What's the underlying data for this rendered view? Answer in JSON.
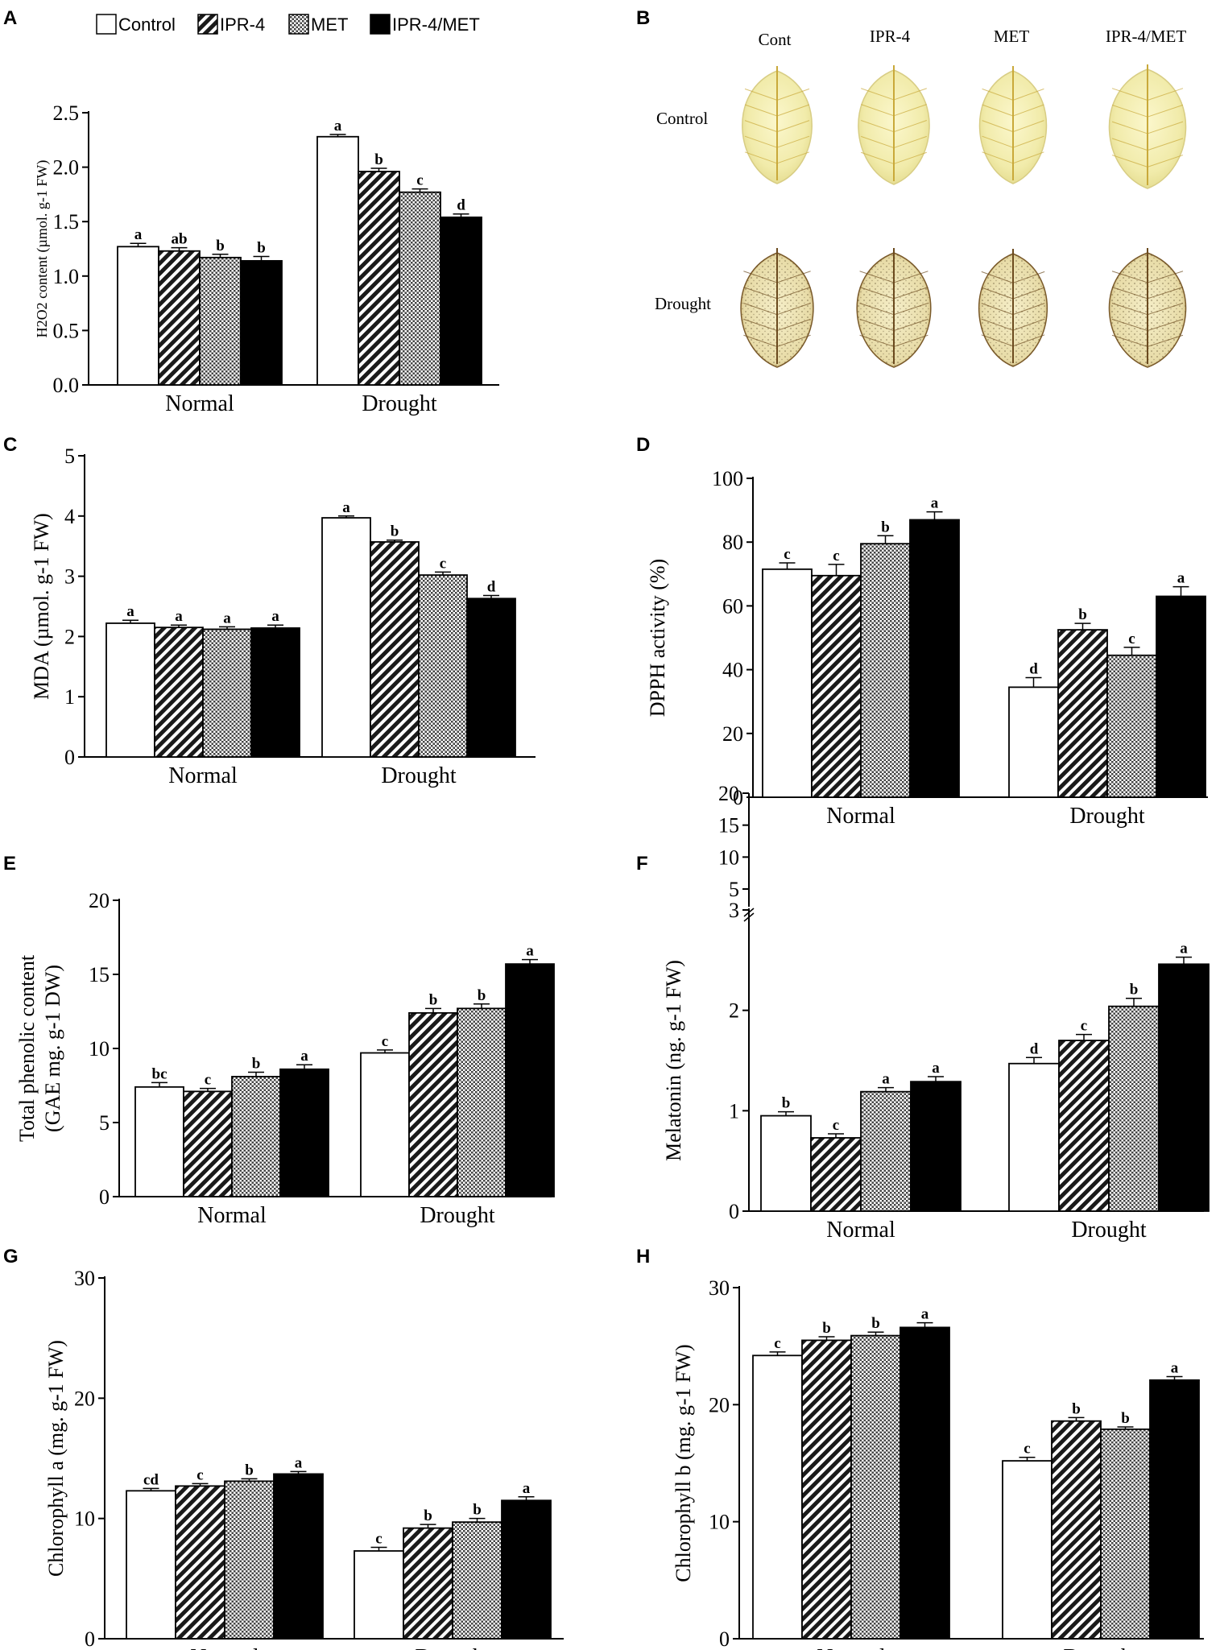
{
  "legend": {
    "items": [
      {
        "label": "Control",
        "pattern": "white"
      },
      {
        "label": "IPR-4",
        "pattern": "hatch"
      },
      {
        "label": "MET",
        "pattern": "dots"
      },
      {
        "label": "IPR-4/MET",
        "pattern": "black"
      }
    ]
  },
  "panels": {
    "A": "A",
    "B": "B",
    "C": "C",
    "D": "D",
    "E": "E",
    "F": "F",
    "G": "G",
    "H": "H"
  },
  "leaf_panel": {
    "columns": [
      "Cont",
      "IPR-4",
      "MET",
      "IPR-4/MET"
    ],
    "rows": [
      "Control",
      "Drought"
    ]
  },
  "chart_data": [
    {
      "id": "A",
      "type": "bar",
      "categories": [
        "Normal",
        "Drought"
      ],
      "ylabel": "H2O2 content (µmol. g-1 FW)",
      "ylim": [
        0,
        2.5
      ],
      "yticks": [
        "0.0",
        "0.5",
        "1.0",
        "1.5",
        "2.0",
        "2.5"
      ],
      "series": [
        {
          "name": "Control",
          "values": [
            1.27,
            2.28
          ],
          "errors": [
            0.03,
            0.02
          ],
          "letters": [
            "a",
            "a"
          ]
        },
        {
          "name": "IPR-4",
          "values": [
            1.23,
            1.96
          ],
          "errors": [
            0.03,
            0.03
          ],
          "letters": [
            "ab",
            "b"
          ]
        },
        {
          "name": "MET",
          "values": [
            1.17,
            1.77
          ],
          "errors": [
            0.03,
            0.03
          ],
          "letters": [
            "b",
            "c"
          ]
        },
        {
          "name": "IPR-4/MET",
          "values": [
            1.14,
            1.54
          ],
          "errors": [
            0.04,
            0.03
          ],
          "letters": [
            "b",
            "d"
          ]
        }
      ]
    },
    {
      "id": "C",
      "type": "bar",
      "categories": [
        "Normal",
        "Drought"
      ],
      "ylabel": "MDA (µmol. g-1 FW)",
      "ylim": [
        0,
        5
      ],
      "yticks": [
        "0",
        "1",
        "2",
        "3",
        "4",
        "5"
      ],
      "series": [
        {
          "name": "Control",
          "values": [
            2.22,
            3.97
          ],
          "errors": [
            0.05,
            0.03
          ],
          "letters": [
            "a",
            "a"
          ]
        },
        {
          "name": "IPR-4",
          "values": [
            2.15,
            3.57
          ],
          "errors": [
            0.04,
            0.03
          ],
          "letters": [
            "a",
            "b"
          ]
        },
        {
          "name": "MET",
          "values": [
            2.12,
            3.02
          ],
          "errors": [
            0.04,
            0.05
          ],
          "letters": [
            "a",
            "c"
          ]
        },
        {
          "name": "IPR-4/MET",
          "values": [
            2.14,
            2.63
          ],
          "errors": [
            0.05,
            0.05
          ],
          "letters": [
            "a",
            "d"
          ]
        }
      ]
    },
    {
      "id": "D",
      "type": "bar",
      "categories": [
        "Normal",
        "Drought"
      ],
      "ylabel": "DPPH activity (%)",
      "ylim": [
        0,
        100
      ],
      "yticks": [
        "0",
        "20",
        "40",
        "60",
        "80",
        "100"
      ],
      "series": [
        {
          "name": "Control",
          "values": [
            71.5,
            34.5
          ],
          "errors": [
            2.0,
            3.0
          ],
          "letters": [
            "c",
            "d"
          ]
        },
        {
          "name": "IPR-4",
          "values": [
            69.5,
            52.5
          ],
          "errors": [
            3.5,
            2.0
          ],
          "letters": [
            "c",
            "b"
          ]
        },
        {
          "name": "MET",
          "values": [
            79.5,
            44.5
          ],
          "errors": [
            2.5,
            2.5
          ],
          "letters": [
            "b",
            "c"
          ]
        },
        {
          "name": "IPR-4/MET",
          "values": [
            87.0,
            63.0
          ],
          "errors": [
            2.5,
            3.0
          ],
          "letters": [
            "a",
            "a"
          ]
        }
      ]
    },
    {
      "id": "E",
      "type": "bar",
      "categories": [
        "Normal",
        "Drought"
      ],
      "ylabel": "Total phenolic content (GAE mg. g-1 DW)",
      "ylabel_lines": [
        "Total phenolic content",
        "(GAE mg. g-1 DW)"
      ],
      "ylim": [
        0,
        20
      ],
      "yticks": [
        "0",
        "5",
        "10",
        "15",
        "20"
      ],
      "series": [
        {
          "name": "Control",
          "values": [
            7.4,
            9.7
          ],
          "errors": [
            0.3,
            0.2
          ],
          "letters": [
            "bc",
            "c"
          ]
        },
        {
          "name": "IPR-4",
          "values": [
            7.1,
            12.4
          ],
          "errors": [
            0.2,
            0.3
          ],
          "letters": [
            "c",
            "b"
          ]
        },
        {
          "name": "MET",
          "values": [
            8.1,
            12.7
          ],
          "errors": [
            0.3,
            0.3
          ],
          "letters": [
            "b",
            "b"
          ]
        },
        {
          "name": "IPR-4/MET",
          "values": [
            8.6,
            15.7
          ],
          "errors": [
            0.3,
            0.3
          ],
          "letters": [
            "a",
            "a"
          ]
        }
      ]
    },
    {
      "id": "F",
      "type": "bar",
      "categories": [
        "Normal",
        "Drought"
      ],
      "ylabel": "Melatonin (ng. g-1 FW)",
      "ylim": [
        0,
        3
      ],
      "yticks": [
        "0",
        "1",
        "2",
        "3"
      ],
      "broken_axis_upper_ticks": [
        "5",
        "10",
        "15",
        "20"
      ],
      "series": [
        {
          "name": "Control",
          "values": [
            0.95,
            1.47
          ],
          "errors": [
            0.04,
            0.06
          ],
          "letters": [
            "b",
            "d"
          ]
        },
        {
          "name": "IPR-4",
          "values": [
            0.73,
            1.7
          ],
          "errors": [
            0.04,
            0.06
          ],
          "letters": [
            "c",
            "c"
          ]
        },
        {
          "name": "MET",
          "values": [
            1.19,
            2.04
          ],
          "errors": [
            0.04,
            0.08
          ],
          "letters": [
            "a",
            "b"
          ]
        },
        {
          "name": "IPR-4/MET",
          "values": [
            1.29,
            2.46
          ],
          "errors": [
            0.05,
            0.07
          ],
          "letters": [
            "a",
            "a"
          ]
        }
      ]
    },
    {
      "id": "G",
      "type": "bar",
      "categories": [
        "Normal",
        "Drought"
      ],
      "ylabel": "Chlorophyll a (mg. g-1 FW)",
      "ylim": [
        0,
        30
      ],
      "yticks": [
        "0",
        "10",
        "20",
        "30"
      ],
      "series": [
        {
          "name": "Control",
          "values": [
            12.3,
            7.3
          ],
          "errors": [
            0.2,
            0.3
          ],
          "letters": [
            "cd",
            "c"
          ]
        },
        {
          "name": "IPR-4",
          "values": [
            12.7,
            9.2
          ],
          "errors": [
            0.2,
            0.3
          ],
          "letters": [
            "c",
            "b"
          ]
        },
        {
          "name": "MET",
          "values": [
            13.1,
            9.7
          ],
          "errors": [
            0.2,
            0.3
          ],
          "letters": [
            "b",
            "b"
          ]
        },
        {
          "name": "IPR-4/MET",
          "values": [
            13.7,
            11.5
          ],
          "errors": [
            0.2,
            0.3
          ],
          "letters": [
            "a",
            "a"
          ]
        }
      ]
    },
    {
      "id": "H",
      "type": "bar",
      "categories": [
        "Normal",
        "Drought"
      ],
      "ylabel": "Chlorophyll b (mg. g-1 FW)",
      "ylim": [
        0,
        30
      ],
      "yticks": [
        "0",
        "10",
        "20",
        "30"
      ],
      "series": [
        {
          "name": "Control",
          "values": [
            24.2,
            15.2
          ],
          "errors": [
            0.3,
            0.3
          ],
          "letters": [
            "c",
            "c"
          ]
        },
        {
          "name": "IPR-4",
          "values": [
            25.5,
            18.6
          ],
          "errors": [
            0.3,
            0.3
          ],
          "letters": [
            "b",
            "b"
          ]
        },
        {
          "name": "MET",
          "values": [
            25.9,
            17.9
          ],
          "errors": [
            0.3,
            0.2
          ],
          "letters": [
            "b",
            "b"
          ]
        },
        {
          "name": "IPR-4/MET",
          "values": [
            26.6,
            22.1
          ],
          "errors": [
            0.4,
            0.3
          ],
          "letters": [
            "a",
            "a"
          ]
        }
      ]
    }
  ]
}
